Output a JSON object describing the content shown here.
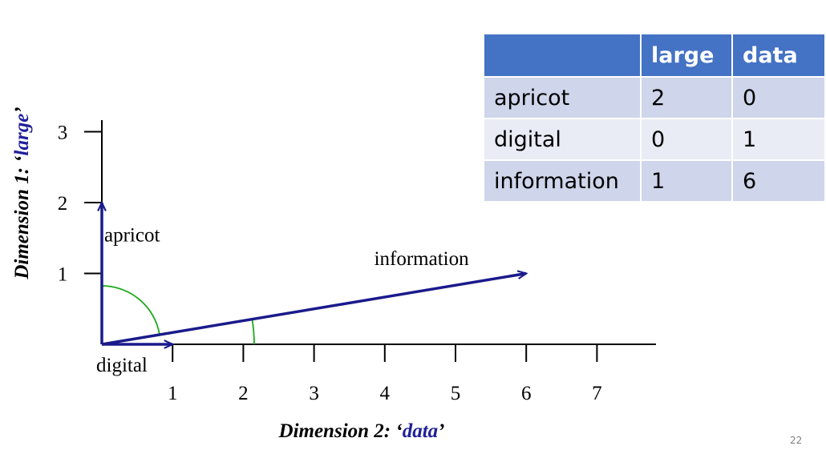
{
  "chart_data": {
    "type": "vector",
    "xlabel": {
      "prefix": "Dimension 2: ",
      "term": "data"
    },
    "ylabel": {
      "prefix": "Dimension 1: ",
      "term": "large"
    },
    "x_ticks": [
      "1",
      "2",
      "3",
      "4",
      "5",
      "6",
      "7"
    ],
    "y_ticks": [
      "1",
      "2",
      "3"
    ],
    "xlim": [
      0,
      7.8
    ],
    "ylim": [
      0,
      3.2
    ],
    "vectors": [
      {
        "name": "apricot",
        "x": 0,
        "y": 2
      },
      {
        "name": "digital",
        "x": 1,
        "y": 0
      },
      {
        "name": "information",
        "x": 6,
        "y": 1
      }
    ],
    "angle_arcs": [
      "apricot-information",
      "information-x-axis"
    ],
    "colors": {
      "vector": "#1a1a8c",
      "arc": "#1aaa1a",
      "axis_title_term": "#1f1f9a"
    }
  },
  "table": {
    "headers": [
      "",
      "large",
      "data"
    ],
    "rows": [
      [
        "apricot",
        "2",
        "0"
      ],
      [
        "digital",
        "0",
        "1"
      ],
      [
        "information",
        "1",
        "6"
      ]
    ]
  },
  "page_number": "22"
}
